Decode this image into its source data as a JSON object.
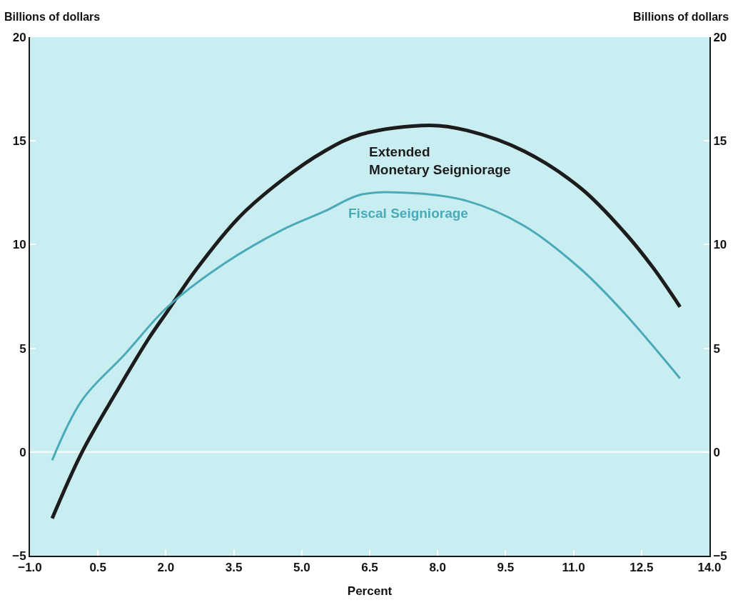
{
  "chart_data": {
    "type": "line",
    "xlabel": "Percent",
    "ylabel": "Billions of dollars",
    "y2label": "Billions of dollars",
    "series": [
      {
        "name": "Extended Monetary Seigniorage",
        "color": "#1c1c1c",
        "x": [
          -0.51,
          0.15,
          0.91,
          1.6,
          2.04,
          2.67,
          3.61,
          4.56,
          5.5,
          6.29,
          7.83,
          8.65,
          9.91,
          11.17,
          12.12,
          12.75,
          13.35
        ],
        "values": [
          -3.2,
          0,
          2.9,
          5.4,
          6.8,
          8.8,
          11.3,
          13.1,
          14.5,
          15.3,
          15.75,
          15.5,
          14.5,
          12.7,
          10.6,
          8.9,
          7.0
        ]
      },
      {
        "name": "Fiscal Seigniorage",
        "color": "#4aaab8",
        "x": [
          -0.51,
          0.15,
          1.09,
          2.04,
          3.3,
          4.56,
          5.5,
          6.29,
          7.27,
          8.65,
          9.91,
          11.17,
          12.12,
          13.35
        ],
        "values": [
          -0.4,
          2.5,
          4.7,
          7.0,
          9.1,
          10.7,
          11.6,
          12.4,
          12.5,
          12.1,
          10.9,
          8.8,
          6.7,
          3.55
        ]
      }
    ],
    "xlim": [
      -1,
      14
    ],
    "xticks": [
      {
        "value": -1,
        "label": "−1.0"
      },
      {
        "value": 0.5,
        "label": "0.5"
      },
      {
        "value": 2,
        "label": "2.0"
      },
      {
        "value": 3.5,
        "label": "3.5"
      },
      {
        "value": 5,
        "label": "5.0"
      },
      {
        "value": 6.5,
        "label": "6.5"
      },
      {
        "value": 8,
        "label": "8.0"
      },
      {
        "value": 9.5,
        "label": "9.5"
      },
      {
        "value": 11,
        "label": "11.0"
      },
      {
        "value": 12.5,
        "label": "12.5"
      },
      {
        "value": 14,
        "label": "14.0"
      }
    ],
    "ylim": [
      -5,
      20
    ],
    "yticks": [
      {
        "value": -5,
        "label": "−5"
      },
      0,
      5,
      10,
      15,
      20
    ],
    "y2lim": [
      -5,
      20
    ],
    "y2ticks": [
      {
        "value": -5,
        "label": "−5"
      },
      0,
      5,
      10,
      15,
      20
    ],
    "ref_lines": [
      {
        "axis": "y",
        "value": 0,
        "color": "#ffffff"
      }
    ],
    "grid": false,
    "legend": false,
    "marker": "none",
    "line_style": "solid"
  }
}
